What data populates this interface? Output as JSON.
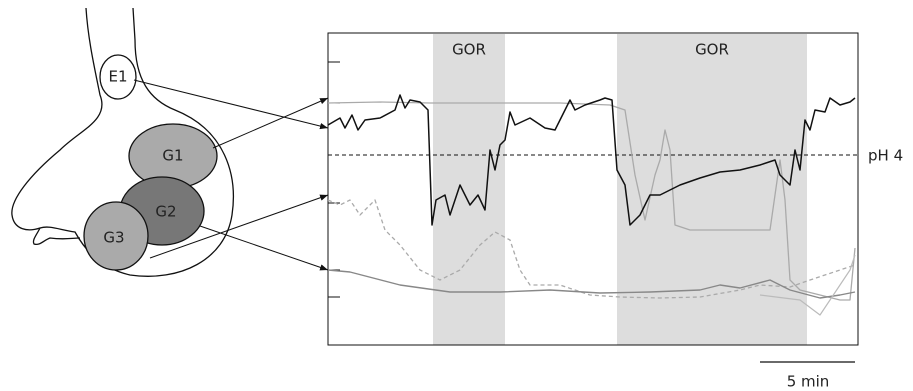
{
  "sensors": {
    "e1": "E1",
    "g1": "G1",
    "g2": "G2",
    "g3": "G3"
  },
  "chart": {
    "bands": [
      "GOR",
      "GOR"
    ],
    "threshold_label": "pH 4",
    "scale_bar_label": "5 min"
  }
}
